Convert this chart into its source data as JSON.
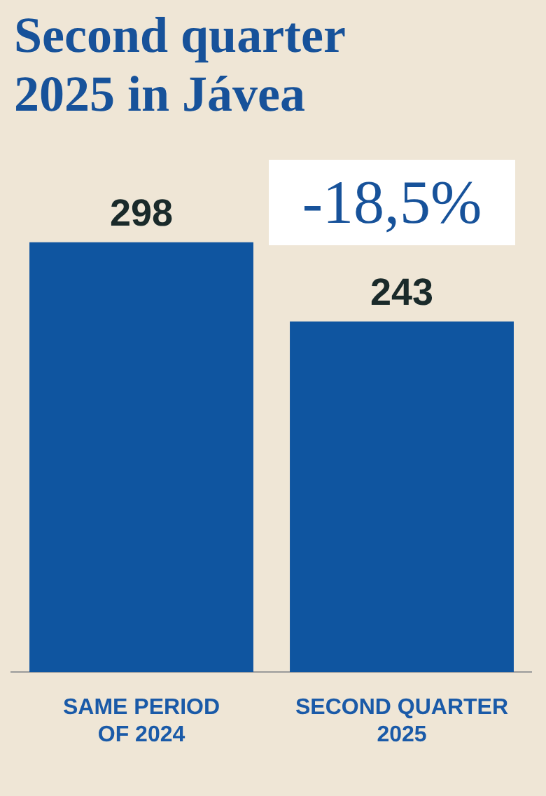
{
  "chart_data": {
    "type": "bar",
    "title": "Second quarter 2025 in Jávea",
    "categories": [
      "SAME PERIOD OF 2024",
      "SECOND QUARTER 2025"
    ],
    "values": [
      298,
      243
    ],
    "color": "#0f55a0",
    "data_labels": true,
    "grid": false,
    "legend": false,
    "annotations": [
      "-18,5%"
    ]
  }
}
